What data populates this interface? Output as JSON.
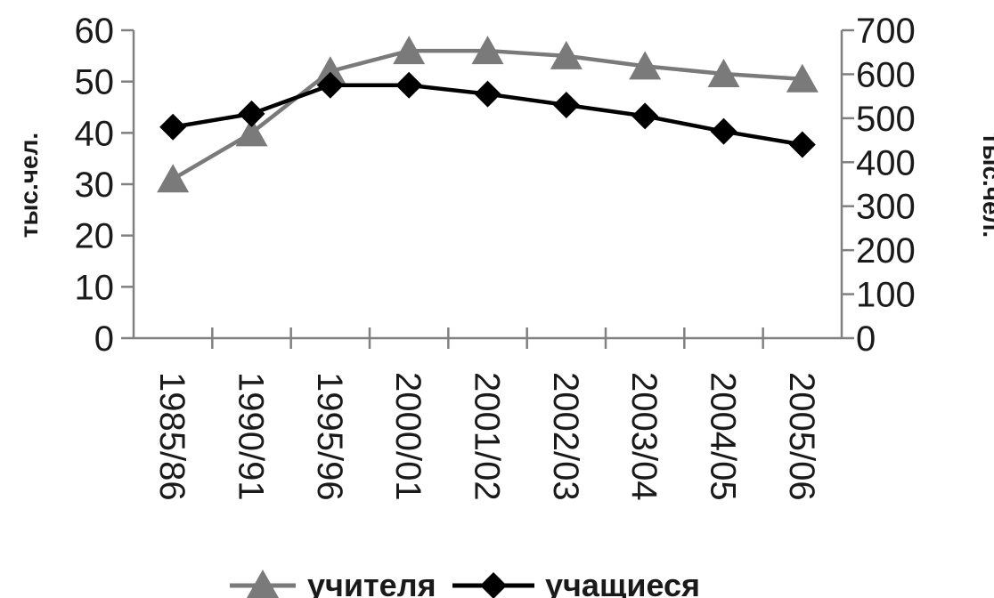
{
  "chart_data": {
    "type": "line",
    "categories": [
      "1985/86",
      "1990/91",
      "1995/96",
      "2000/01",
      "2001/02",
      "2002/03",
      "2003/04",
      "2004/05",
      "2005/06"
    ],
    "series": [
      {
        "name": "учителя",
        "axis": "left",
        "marker": "triangle",
        "color": "#7a7a7a",
        "values": [
          31,
          40,
          52,
          56,
          56,
          55,
          53,
          51.5,
          50.5
        ]
      },
      {
        "name": "учащиеся",
        "axis": "right",
        "marker": "diamond",
        "color": "#000000",
        "values": [
          480,
          510,
          575,
          575,
          555,
          530,
          505,
          470,
          440
        ]
      }
    ],
    "y_left": {
      "label": "тыс.чел.",
      "min": 0,
      "max": 60,
      "step": 10,
      "ticks": [
        "0",
        "10",
        "20",
        "30",
        "40",
        "50",
        "60"
      ]
    },
    "y_right": {
      "label": "тыс.чел.",
      "min": 0,
      "max": 700,
      "step": 100,
      "ticks": [
        "0",
        "100",
        "200",
        "300",
        "400",
        "500",
        "600",
        "700"
      ]
    },
    "grid": false,
    "legend_position": "bottom"
  }
}
